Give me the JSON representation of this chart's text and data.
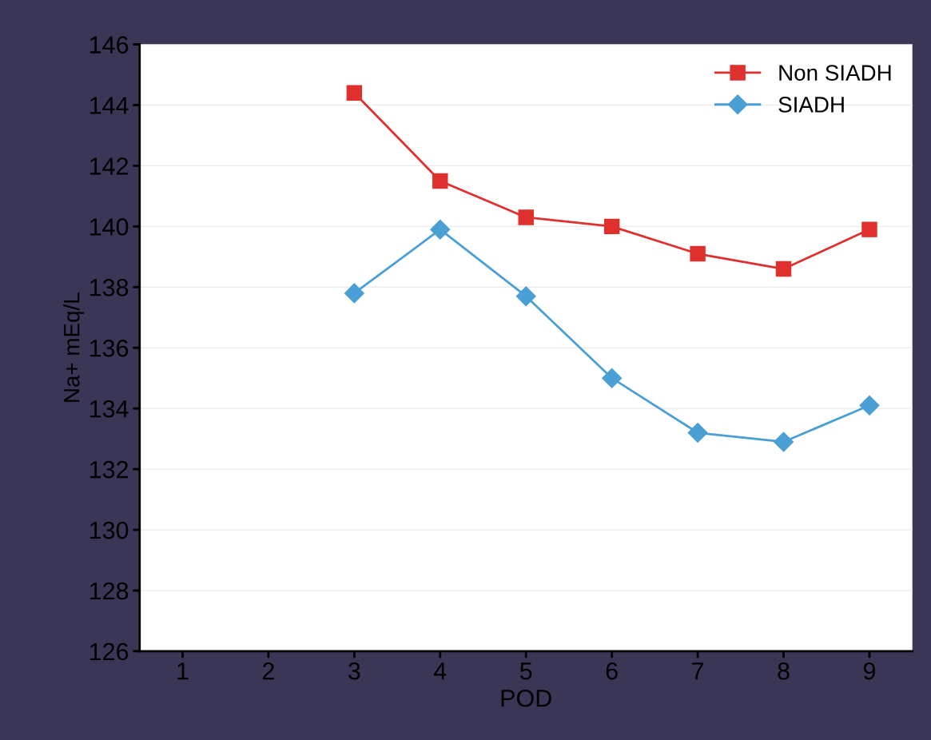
{
  "chart_data": {
    "type": "line",
    "xlabel": "POD",
    "ylabel": "Na+ mEq/L",
    "x": [
      3,
      4,
      5,
      6,
      7,
      8,
      9
    ],
    "series": [
      {
        "name": "Non SIADH",
        "color": "#e0302e",
        "marker": "square",
        "values": [
          144.4,
          141.5,
          140.3,
          140.0,
          139.1,
          138.6,
          139.9
        ]
      },
      {
        "name": "SIADH",
        "color": "#4a9fd4",
        "marker": "diamond",
        "values": [
          137.8,
          139.9,
          137.7,
          135.0,
          133.2,
          132.9,
          134.1
        ]
      }
    ],
    "xlim": [
      0.5,
      9.5
    ],
    "xticks": [
      1,
      2,
      3,
      4,
      5,
      6,
      7,
      8,
      9
    ],
    "ylim": [
      126,
      146
    ],
    "yticks": [
      126,
      128,
      130,
      132,
      134,
      136,
      138,
      140,
      142,
      144,
      146
    ],
    "grid": "y",
    "legend": "top right",
    "line_style": "solid"
  }
}
